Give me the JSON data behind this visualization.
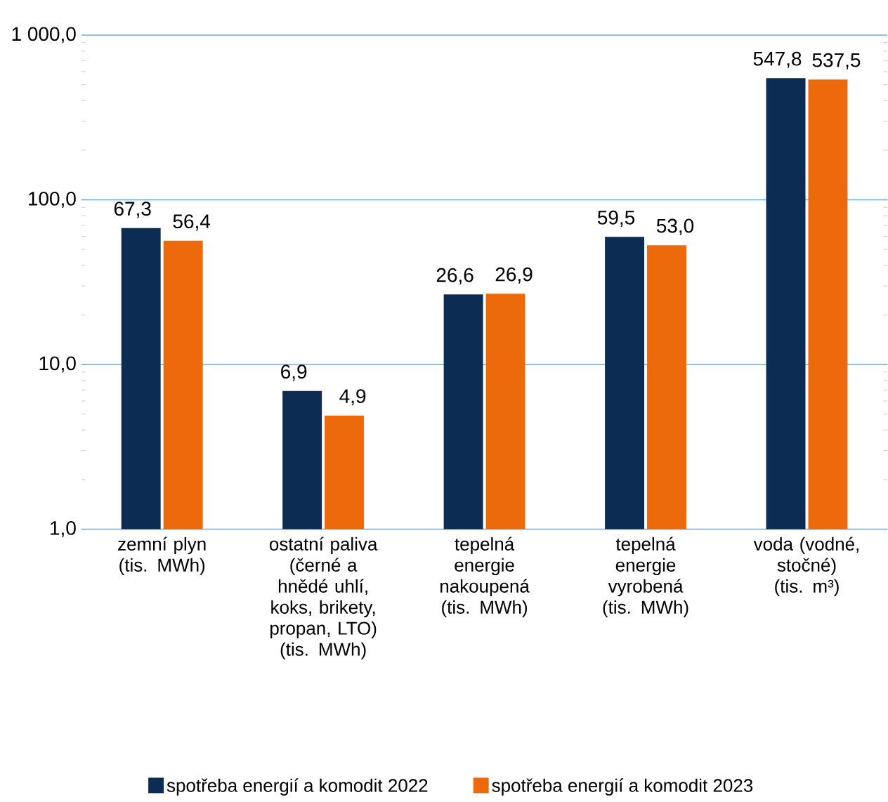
{
  "chart_data": {
    "type": "bar",
    "log": "y",
    "grid": "y",
    "legend": "bottom",
    "categories": [
      "zemní plyn (tis. MWh)",
      "ostatní paliva (černé a hnědé uhlí, koks, brikety, propan, LTO) (tis. MWh)",
      "tepelná energie nakoupená (tis. MWh)",
      "tepelná energie vyrobená (tis. MWh)",
      "voda (vodné, stočné) (tis. m³)"
    ],
    "ylim": [
      1,
      1000
    ],
    "yticks": [
      {
        "value": 1,
        "label": "1,0"
      },
      {
        "value": 10,
        "label": "10,0"
      },
      {
        "value": 100,
        "label": "100,0"
      },
      {
        "value": 1000,
        "label": "1 000,0"
      }
    ],
    "series": [
      {
        "name": "spotřeba energií a komodit 2022",
        "color": "#0c2c54",
        "values": [
          67.3,
          6.9,
          26.6,
          59.5,
          547.8
        ],
        "value_labels": [
          "67,3",
          "6,9",
          "26,6",
          "59,5",
          "547,8"
        ]
      },
      {
        "name": "spotřeba energií a komodit 2023",
        "color": "#ec6a0c",
        "values": [
          56.4,
          4.9,
          26.9,
          53.0,
          537.5
        ],
        "value_labels": [
          "56,4",
          "4,9",
          "26,9",
          "53,0",
          "537,5"
        ]
      }
    ]
  }
}
